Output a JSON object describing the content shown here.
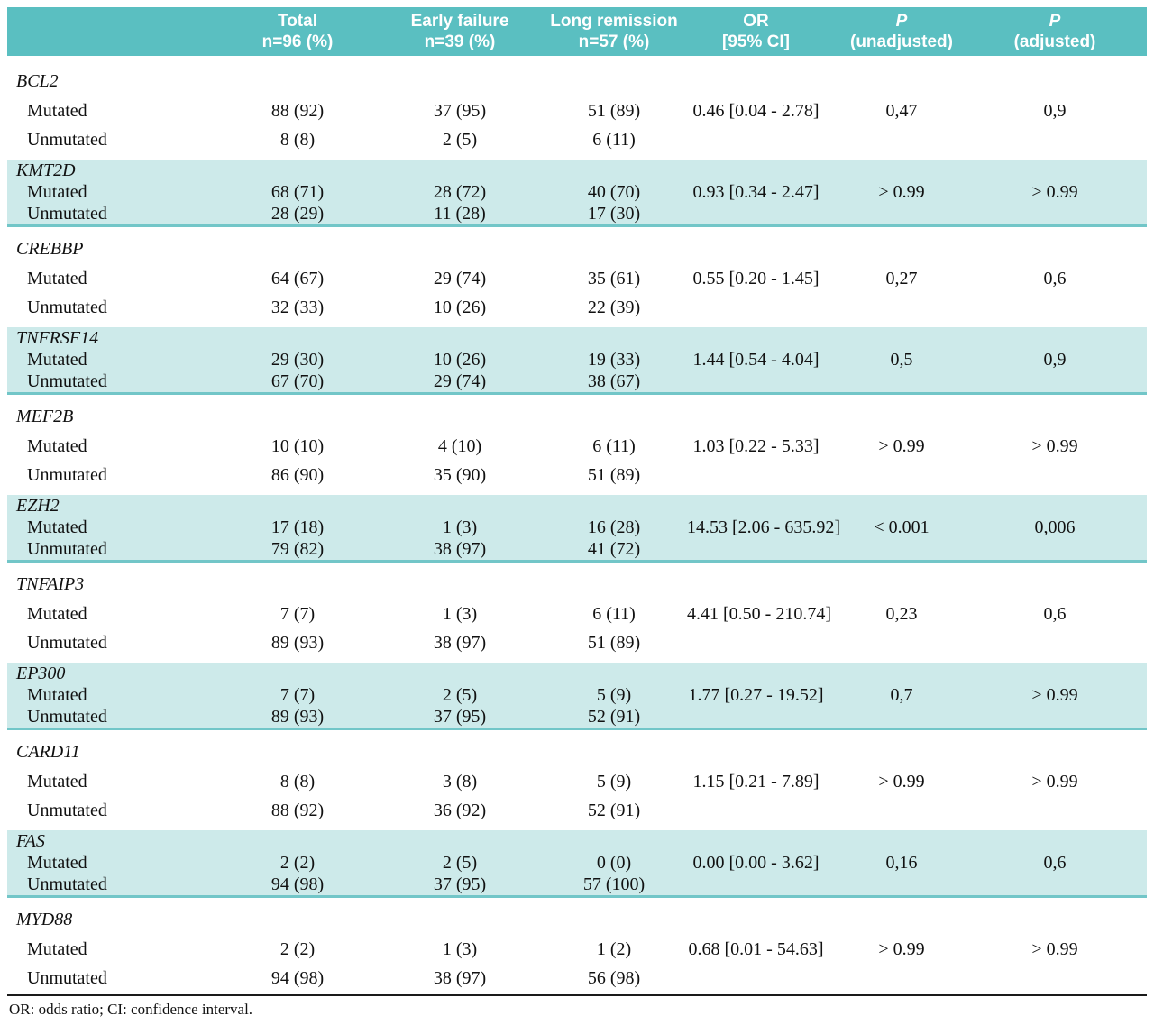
{
  "colors": {
    "header_bg": "#5abfc1",
    "header_text": "#ffffff",
    "band_bg": "#cdeaea",
    "band_border": "#72c6c8",
    "footer_rule": "#1a1a1a"
  },
  "table": {
    "columns": [
      {
        "line1": "",
        "line2": ""
      },
      {
        "line1": "Total",
        "line2": "n=96 (%)"
      },
      {
        "line1": "Early failure",
        "line2": "n=39 (%)"
      },
      {
        "line1": "Long remission",
        "line2": "n=57 (%)"
      },
      {
        "line1": "OR",
        "line2": "[95% CI]"
      },
      {
        "line1": "P",
        "line2": "(unadjusted)"
      },
      {
        "line1": "P",
        "line2": "(adjusted)"
      }
    ],
    "sections": [
      {
        "gene": "BCL2",
        "shaded": false,
        "rows": [
          {
            "label": "Mutated",
            "total": "88 (92)",
            "early": "37 (95)",
            "long": "51 (89)",
            "or": "0.46 [0.04 - 2.78]",
            "p_unadjusted": "0,47",
            "p_adjusted": "0,9"
          },
          {
            "label": "Unmutated",
            "total": "8 (8)",
            "early": "2 (5)",
            "long": "6 (11)",
            "or": "",
            "p_unadjusted": "",
            "p_adjusted": ""
          }
        ]
      },
      {
        "gene": "KMT2D",
        "shaded": true,
        "rows": [
          {
            "label": "Mutated",
            "total": "68 (71)",
            "early": "28 (72)",
            "long": "40 (70)",
            "or": "0.93 [0.34 - 2.47]",
            "p_unadjusted": "> 0.99",
            "p_adjusted": "> 0.99"
          },
          {
            "label": "Unmutated",
            "total": "28 (29)",
            "early": "11 (28)",
            "long": "17 (30)",
            "or": "",
            "p_unadjusted": "",
            "p_adjusted": ""
          }
        ]
      },
      {
        "gene": "CREBBP",
        "shaded": false,
        "rows": [
          {
            "label": "Mutated",
            "total": "64 (67)",
            "early": "29 (74)",
            "long": "35 (61)",
            "or": "0.55 [0.20 - 1.45]",
            "p_unadjusted": "0,27",
            "p_adjusted": "0,6"
          },
          {
            "label": "Unmutated",
            "total": "32 (33)",
            "early": "10 (26)",
            "long": "22 (39)",
            "or": "",
            "p_unadjusted": "",
            "p_adjusted": ""
          }
        ]
      },
      {
        "gene": "TNFRSF14",
        "shaded": true,
        "rows": [
          {
            "label": "Mutated",
            "total": "29 (30)",
            "early": "10 (26)",
            "long": "19 (33)",
            "or": "1.44 [0.54 - 4.04]",
            "p_unadjusted": "0,5",
            "p_adjusted": "0,9"
          },
          {
            "label": "Unmutated",
            "total": "67 (70)",
            "early": "29 (74)",
            "long": "38 (67)",
            "or": "",
            "p_unadjusted": "",
            "p_adjusted": ""
          }
        ]
      },
      {
        "gene": "MEF2B",
        "shaded": false,
        "rows": [
          {
            "label": "Mutated",
            "total": "10 (10)",
            "early": "4 (10)",
            "long": "6 (11)",
            "or": "1.03 [0.22 - 5.33]",
            "p_unadjusted": "> 0.99",
            "p_adjusted": "> 0.99"
          },
          {
            "label": "Unmutated",
            "total": "86 (90)",
            "early": "35 (90)",
            "long": "51 (89)",
            "or": "",
            "p_unadjusted": "",
            "p_adjusted": ""
          }
        ]
      },
      {
        "gene": "EZH2",
        "shaded": true,
        "rows": [
          {
            "label": "Mutated",
            "total": "17 (18)",
            "early": "1 (3)",
            "long": "16 (28)",
            "or": "14.53 [2.06 - 635.92]",
            "p_unadjusted": "< 0.001",
            "p_adjusted": "0,006"
          },
          {
            "label": "Unmutated",
            "total": "79 (82)",
            "early": "38 (97)",
            "long": "41 (72)",
            "or": "",
            "p_unadjusted": "",
            "p_adjusted": ""
          }
        ]
      },
      {
        "gene": "TNFAIP3",
        "shaded": false,
        "rows": [
          {
            "label": "Mutated",
            "total": "7 (7)",
            "early": "1 (3)",
            "long": "6 (11)",
            "or": "4.41 [0.50 - 210.74]",
            "p_unadjusted": "0,23",
            "p_adjusted": "0,6"
          },
          {
            "label": "Unmutated",
            "total": "89 (93)",
            "early": "38 (97)",
            "long": "51 (89)",
            "or": "",
            "p_unadjusted": "",
            "p_adjusted": ""
          }
        ]
      },
      {
        "gene": "EP300",
        "shaded": true,
        "rows": [
          {
            "label": "Mutated",
            "total": "7 (7)",
            "early": "2 (5)",
            "long": "5 (9)",
            "or": "1.77 [0.27 - 19.52]",
            "p_unadjusted": "0,7",
            "p_adjusted": "> 0.99"
          },
          {
            "label": "Unmutated",
            "total": "89 (93)",
            "early": "37 (95)",
            "long": "52 (91)",
            "or": "",
            "p_unadjusted": "",
            "p_adjusted": ""
          }
        ]
      },
      {
        "gene": "CARD11",
        "shaded": false,
        "rows": [
          {
            "label": "Mutated",
            "total": "8 (8)",
            "early": "3 (8)",
            "long": "5 (9)",
            "or": "1.15 [0.21 - 7.89]",
            "p_unadjusted": "> 0.99",
            "p_adjusted": "> 0.99"
          },
          {
            "label": "Unmutated",
            "total": "88 (92)",
            "early": "36 (92)",
            "long": "52 (91)",
            "or": "",
            "p_unadjusted": "",
            "p_adjusted": ""
          }
        ]
      },
      {
        "gene": "FAS",
        "shaded": true,
        "rows": [
          {
            "label": "Mutated",
            "total": "2 (2)",
            "early": "2 (5)",
            "long": "0 (0)",
            "or": "0.00 [0.00 - 3.62]",
            "p_unadjusted": "0,16",
            "p_adjusted": "0,6"
          },
          {
            "label": "Unmutated",
            "total": "94 (98)",
            "early": "37 (95)",
            "long": "57 (100)",
            "or": "",
            "p_unadjusted": "",
            "p_adjusted": ""
          }
        ]
      },
      {
        "gene": "MYD88",
        "shaded": false,
        "rows": [
          {
            "label": "Mutated",
            "total": "2 (2)",
            "early": "1 (3)",
            "long": "1 (2)",
            "or": "0.68 [0.01 - 54.63]",
            "p_unadjusted": "> 0.99",
            "p_adjusted": "> 0.99"
          },
          {
            "label": "Unmutated",
            "total": "94 (98)",
            "early": "38 (97)",
            "long": "56 (98)",
            "or": "",
            "p_unadjusted": "",
            "p_adjusted": ""
          }
        ]
      }
    ],
    "footnote": "OR: odds ratio; CI: confidence interval."
  }
}
